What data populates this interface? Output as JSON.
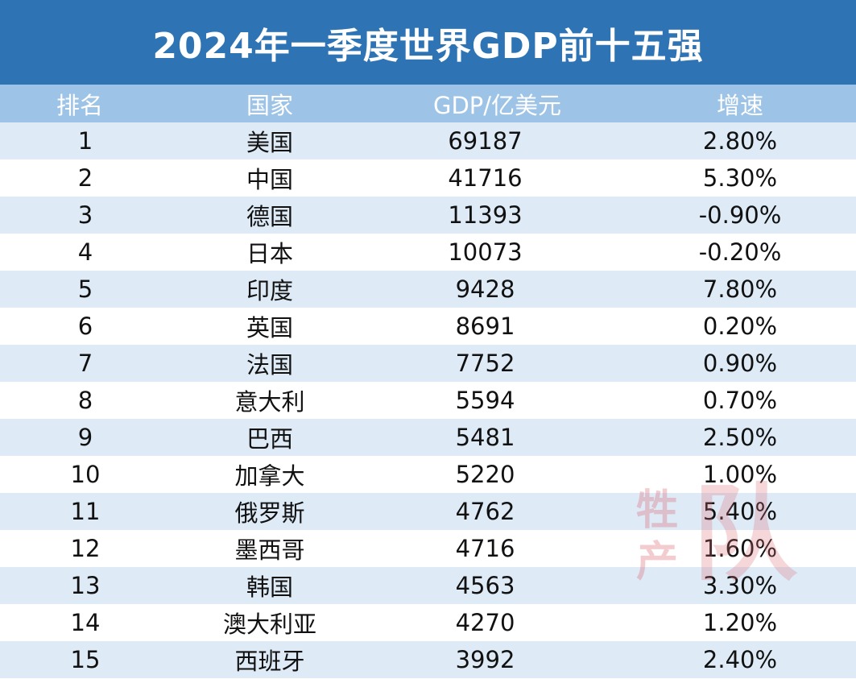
{
  "title": "2024年一季度世界GDP前十五强",
  "headers": {
    "rank": "排名",
    "country": "国家",
    "gdp": "GDP/亿美元",
    "growth": "增速"
  },
  "rows": [
    {
      "rank": "1",
      "country": "美国",
      "gdp": "69187",
      "growth": "2.80%"
    },
    {
      "rank": "2",
      "country": "中国",
      "gdp": "41716",
      "growth": "5.30%"
    },
    {
      "rank": "3",
      "country": "德国",
      "gdp": "11393",
      "growth": "-0.90%"
    },
    {
      "rank": "4",
      "country": "日本",
      "gdp": "10073",
      "growth": "-0.20%"
    },
    {
      "rank": "5",
      "country": "印度",
      "gdp": "9428",
      "growth": "7.80%"
    },
    {
      "rank": "6",
      "country": "英国",
      "gdp": "8691",
      "growth": "0.20%"
    },
    {
      "rank": "7",
      "country": "法国",
      "gdp": "7752",
      "growth": "0.90%"
    },
    {
      "rank": "8",
      "country": "意大利",
      "gdp": "5594",
      "growth": "0.70%"
    },
    {
      "rank": "9",
      "country": "巴西",
      "gdp": "5481",
      "growth": "2.50%"
    },
    {
      "rank": "10",
      "country": "加拿大",
      "gdp": "5220",
      "growth": "1.00%"
    },
    {
      "rank": "11",
      "country": "俄罗斯",
      "gdp": "4762",
      "growth": "5.40%"
    },
    {
      "rank": "12",
      "country": "墨西哥",
      "gdp": "4716",
      "growth": "1.60%"
    },
    {
      "rank": "13",
      "country": "韩国",
      "gdp": "4563",
      "growth": "3.30%"
    },
    {
      "rank": "14",
      "country": "澳大利亚",
      "gdp": "4270",
      "growth": "1.20%"
    },
    {
      "rank": "15",
      "country": "西班牙",
      "gdp": "3992",
      "growth": "2.40%"
    }
  ],
  "watermark": {
    "char1": "牲",
    "char2": "产",
    "char3": "队"
  },
  "colors": {
    "title_bg": "#2e74b5",
    "header_bg": "#9dc3e6",
    "stripe": "#deebf7",
    "watermark": "#dc6e78"
  }
}
